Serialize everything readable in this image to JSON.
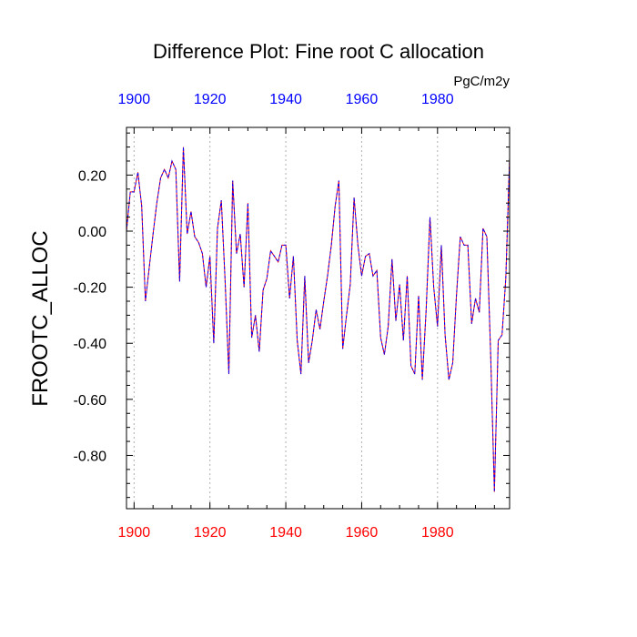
{
  "chart_data": {
    "type": "line",
    "title": "Difference Plot: Fine root C allocation",
    "units": "PgC/m2y",
    "ylabel": "FROOTC_ALLOC",
    "xlabel": "",
    "xlim": [
      1898,
      1999
    ],
    "ylim": [
      -0.99,
      0.37
    ],
    "x_ticks_major": [
      1900,
      1920,
      1940,
      1960,
      1980
    ],
    "x_tick_labels": [
      "1900",
      "1920",
      "1940",
      "1960",
      "1980"
    ],
    "y_ticks_major": [
      0.2,
      0.0,
      -0.2,
      -0.4,
      -0.6,
      -0.8
    ],
    "y_tick_labels": [
      "0.20",
      "0.00",
      "-0.20",
      "-0.40",
      "-0.60",
      "-0.80"
    ],
    "grid_x": true,
    "grid_y": false,
    "colors": {
      "bottom_axis_labels": "#ff0000",
      "top_axis_labels": "#0000ff",
      "series_a": "#ff0000",
      "series_b": "#0000ff",
      "grid": "#b0b0b0"
    },
    "line_style": "dashed",
    "series": [
      {
        "x": [
          1898,
          1899,
          1900,
          1901,
          1902,
          1903,
          1904,
          1905,
          1906,
          1907,
          1908,
          1909,
          1910,
          1911,
          1912,
          1913,
          1914,
          1915,
          1916,
          1917,
          1918,
          1919,
          1920,
          1921,
          1922,
          1923,
          1924,
          1925,
          1926,
          1927,
          1928,
          1929,
          1930,
          1931,
          1932,
          1933,
          1934,
          1935,
          1936,
          1937,
          1938,
          1939,
          1940,
          1941,
          1942,
          1943,
          1944,
          1945,
          1946,
          1947,
          1948,
          1949,
          1950,
          1951,
          1952,
          1953,
          1954,
          1955,
          1956,
          1957,
          1958,
          1959,
          1960,
          1961,
          1962,
          1963,
          1964,
          1965,
          1966,
          1967,
          1968,
          1969,
          1970,
          1971,
          1972,
          1973,
          1974,
          1975,
          1976,
          1977,
          1978,
          1979,
          1980,
          1981,
          1982,
          1983,
          1984,
          1985,
          1986,
          1987,
          1988,
          1989,
          1990,
          1991,
          1992,
          1993,
          1994,
          1995,
          1996,
          1997,
          1998,
          1999
        ],
        "y": [
          0.0,
          0.14,
          0.14,
          0.21,
          0.09,
          -0.25,
          -0.13,
          -0.01,
          0.1,
          0.19,
          0.22,
          0.19,
          0.25,
          0.22,
          -0.18,
          0.3,
          -0.01,
          0.07,
          -0.02,
          -0.04,
          -0.08,
          -0.2,
          -0.09,
          -0.4,
          0.01,
          0.11,
          -0.18,
          -0.51,
          0.18,
          -0.08,
          -0.01,
          -0.2,
          0.1,
          -0.38,
          -0.3,
          -0.43,
          -0.21,
          -0.17,
          -0.07,
          -0.09,
          -0.11,
          -0.05,
          -0.05,
          -0.24,
          -0.09,
          -0.39,
          -0.51,
          -0.16,
          -0.47,
          -0.39,
          -0.28,
          -0.35,
          -0.25,
          -0.16,
          -0.05,
          0.09,
          0.18,
          -0.42,
          -0.3,
          -0.19,
          0.12,
          -0.05,
          -0.16,
          -0.09,
          -0.08,
          -0.16,
          -0.14,
          -0.38,
          -0.44,
          -0.34,
          -0.1,
          -0.32,
          -0.19,
          -0.39,
          -0.16,
          -0.48,
          -0.51,
          -0.23,
          -0.53,
          -0.28,
          0.05,
          -0.2,
          -0.34,
          -0.05,
          -0.37,
          -0.53,
          -0.47,
          -0.23,
          -0.02,
          -0.05,
          -0.05,
          -0.33,
          -0.24,
          -0.29,
          0.01,
          -0.02,
          -0.44,
          -0.93,
          -0.39,
          -0.37,
          -0.17,
          0.26
        ]
      }
    ]
  }
}
